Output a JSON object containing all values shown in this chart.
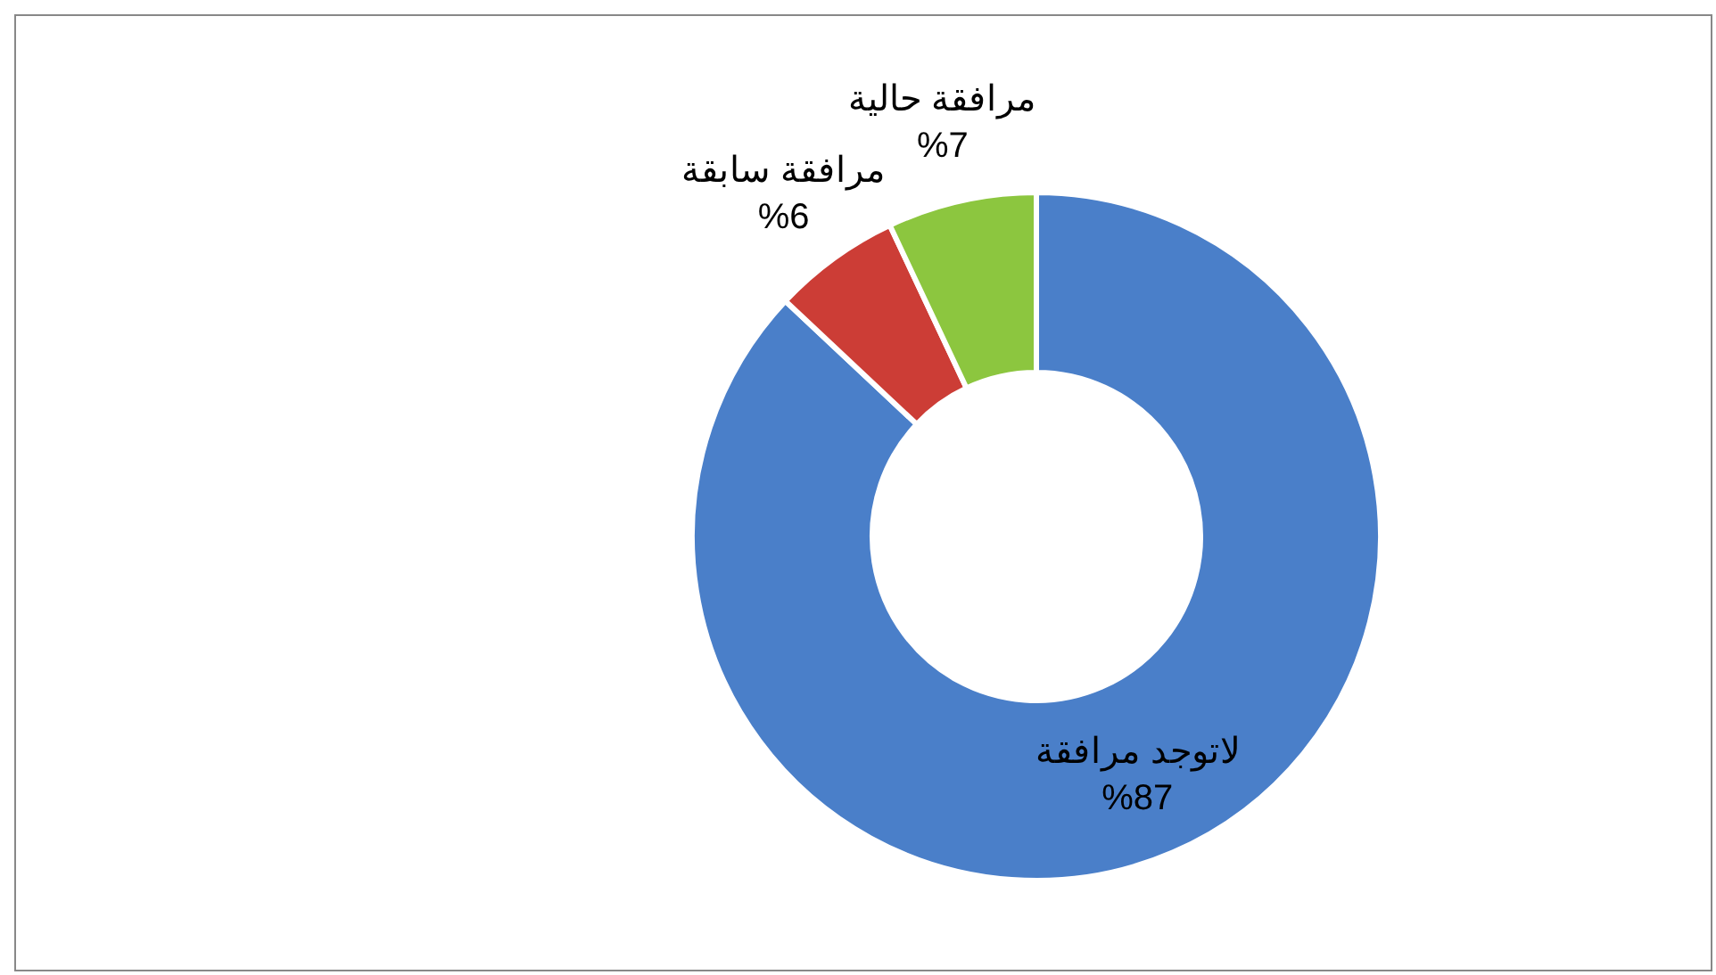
{
  "chart_data": {
    "type": "donut",
    "categories": [
      "لاتوجد مرافقة",
      "مرافقة سابقة",
      "مرافقة حالية"
    ],
    "values": [
      87,
      6,
      7
    ],
    "colors": [
      "#4a7fc9",
      "#cc3d36",
      "#8cc63f"
    ],
    "value_labels": [
      "%87",
      "%6",
      "%7"
    ],
    "legend": false
  }
}
